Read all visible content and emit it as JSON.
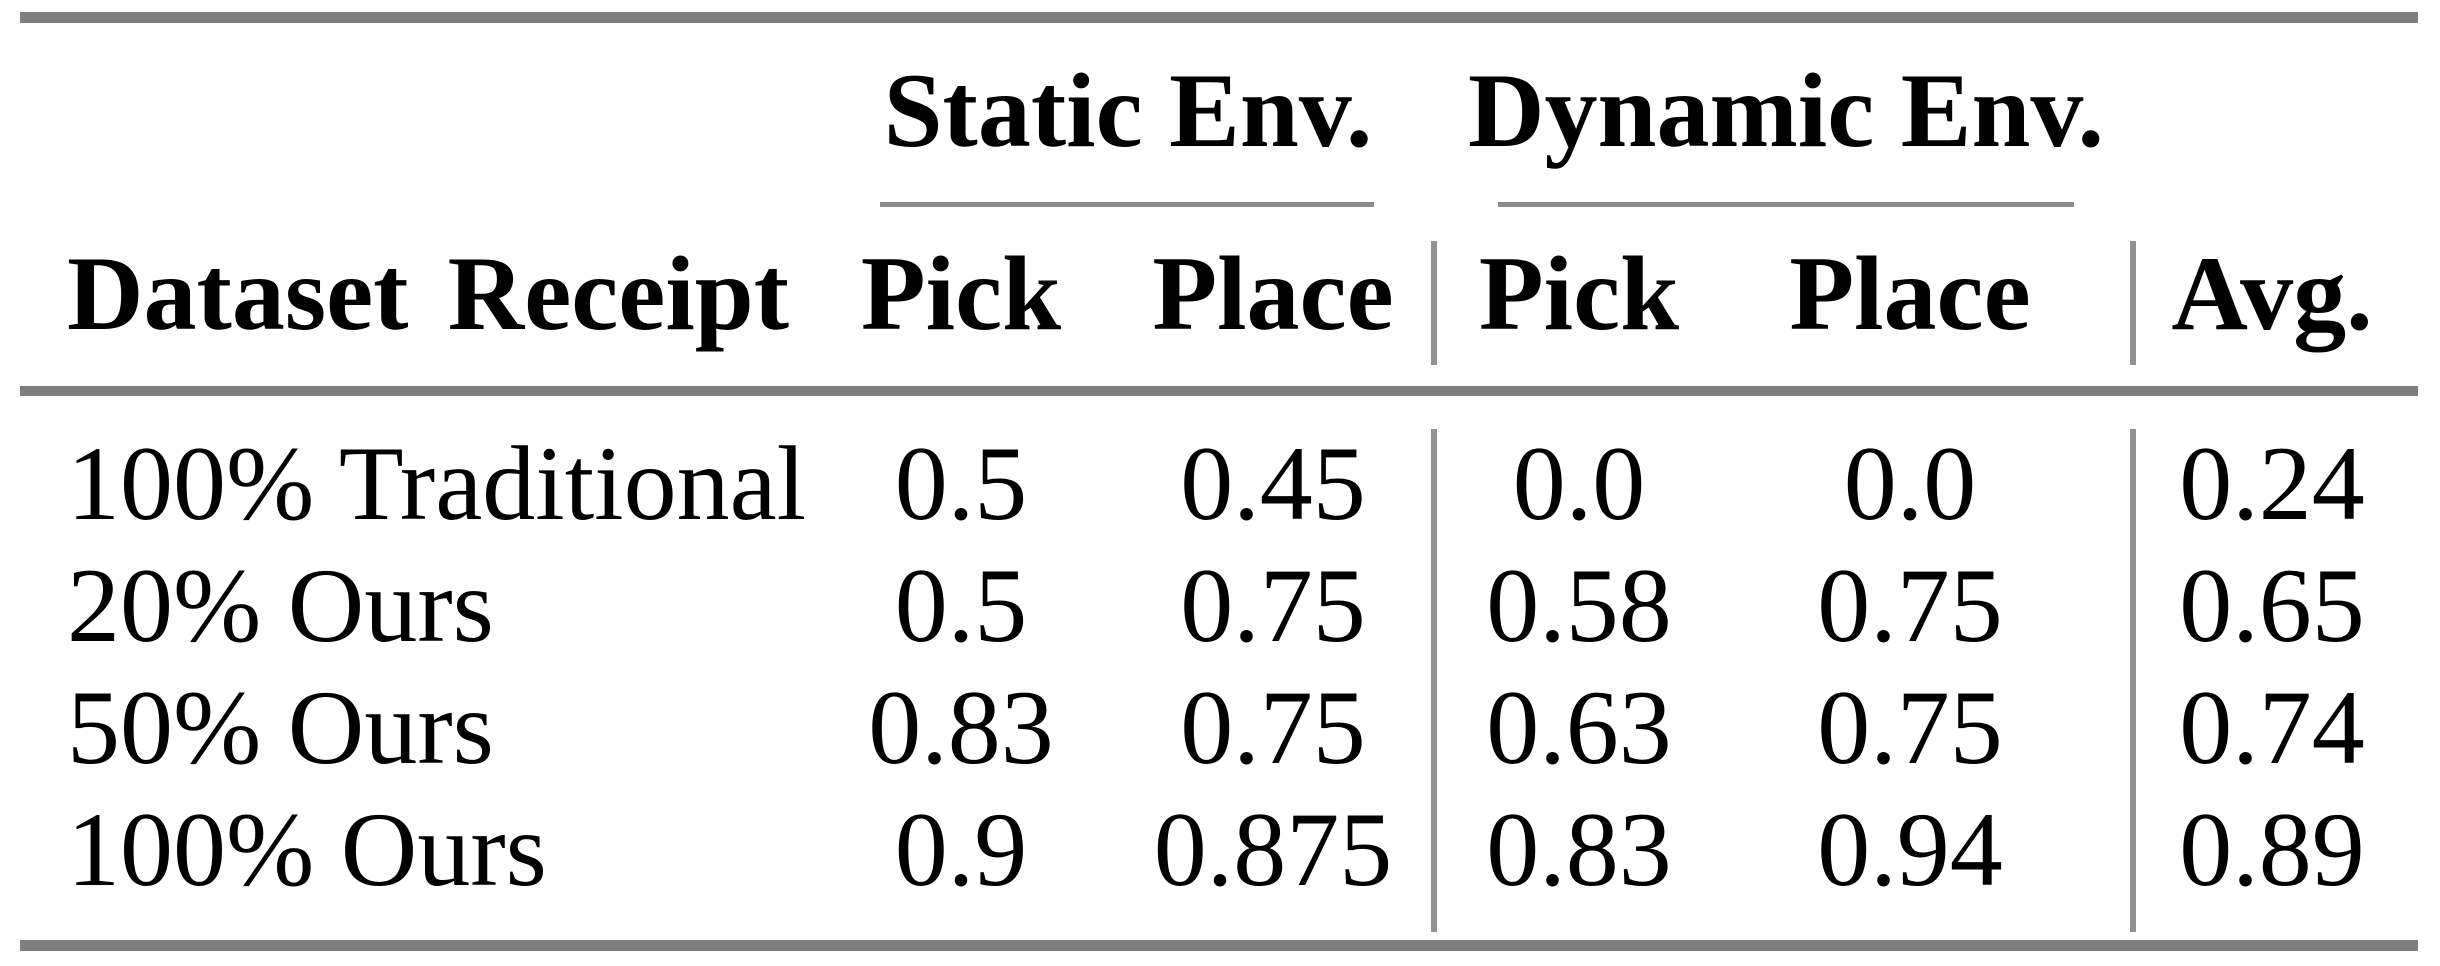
{
  "table": {
    "col_groups": {
      "static": "Static Env.",
      "dynamic": "Dynamic Env."
    },
    "headers": {
      "dataset": "Dataset Receipt",
      "static_pick": "Pick",
      "static_place": "Place",
      "dynamic_pick": "Pick",
      "dynamic_place": "Place",
      "avg": "Avg."
    },
    "rows": [
      {
        "dataset": "100% Traditional",
        "static_pick": "0.5",
        "static_place": "0.45",
        "dynamic_pick": "0.0",
        "dynamic_place": "0.0",
        "avg": "0.24"
      },
      {
        "dataset": "20% Ours",
        "static_pick": "0.5",
        "static_place": "0.75",
        "dynamic_pick": "0.58",
        "dynamic_place": "0.75",
        "avg": "0.65"
      },
      {
        "dataset": "50% Ours",
        "static_pick": "0.83",
        "static_place": "0.75",
        "dynamic_pick": "0.63",
        "dynamic_place": "0.75",
        "avg": "0.74"
      },
      {
        "dataset": "100% Ours",
        "static_pick": "0.9",
        "static_place": "0.875",
        "dynamic_pick": "0.83",
        "dynamic_place": "0.94",
        "avg": "0.89"
      }
    ]
  },
  "colors": {
    "text": "#000000",
    "thick_rule": "#7e7e7e",
    "thin_rule": "#8c8c8c",
    "column_separator": "#929292",
    "background": "#ffffff"
  },
  "chart_data": {
    "type": "table",
    "title": "",
    "column_groups": [
      {
        "label": "Static Env.",
        "columns": [
          "Pick",
          "Place"
        ]
      },
      {
        "label": "Dynamic Env.",
        "columns": [
          "Pick",
          "Place"
        ]
      }
    ],
    "columns": [
      "Dataset Receipt",
      "Static Env. Pick",
      "Static Env. Place",
      "Dynamic Env. Pick",
      "Dynamic Env. Place",
      "Avg."
    ],
    "rows": [
      [
        "100% Traditional",
        0.5,
        0.45,
        0.0,
        0.0,
        0.24
      ],
      [
        "20% Ours",
        0.5,
        0.75,
        0.58,
        0.75,
        0.65
      ],
      [
        "50% Ours",
        0.83,
        0.75,
        0.63,
        0.75,
        0.74
      ],
      [
        "100% Ours",
        0.9,
        0.875,
        0.83,
        0.94,
        0.89
      ]
    ]
  }
}
